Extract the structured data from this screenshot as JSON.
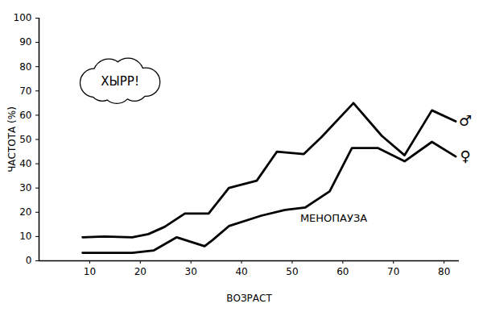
{
  "chart_data": {
    "type": "line",
    "xlabel": "ВОЗРАСТ",
    "ylabel": "ЧАСТОТА (%)",
    "xlim": [
      0,
      83
    ],
    "ylim": [
      0,
      100
    ],
    "xticks": [
      10,
      20,
      30,
      40,
      50,
      60,
      70,
      80
    ],
    "yticks": [
      0,
      10,
      20,
      30,
      40,
      50,
      60,
      70,
      80,
      90,
      100
    ],
    "grid": false,
    "series": [
      {
        "name": "♂",
        "color": "#000000",
        "line_style": "solid",
        "marker": "none",
        "x": [
          8.6,
          12.9,
          18.4,
          21.6,
          24.8,
          28.8,
          33.5,
          37.5,
          43,
          47,
          52.3,
          55.8,
          62.1,
          67.7,
          72.2,
          77.6,
          82.3
        ],
        "values": [
          9.7,
          10,
          9.7,
          11,
          14,
          19.5,
          19.5,
          30,
          33,
          45,
          44,
          51,
          65,
          51.5,
          43.5,
          62,
          57.5
        ]
      },
      {
        "name": "♀",
        "color": "#000000",
        "line_style": "solid",
        "marker": "none",
        "x": [
          8.6,
          18.4,
          22.7,
          27.2,
          32.7,
          34.3,
          37.5,
          43.9,
          48.6,
          52.6,
          57.4,
          61.8,
          66.9,
          72.2,
          77.6,
          82.3
        ],
        "values": [
          3.3,
          3.3,
          4.3,
          9.7,
          6,
          8.6,
          14.3,
          18.6,
          21,
          22,
          28.6,
          46.5,
          46.5,
          41,
          49,
          43
        ]
      }
    ],
    "annotations": [
      {
        "text": "ХЫРР!",
        "x": 16,
        "y": 74
      },
      {
        "text": "МЕНОПАУЗА",
        "x": 58.2,
        "y": 17.6
      }
    ]
  }
}
